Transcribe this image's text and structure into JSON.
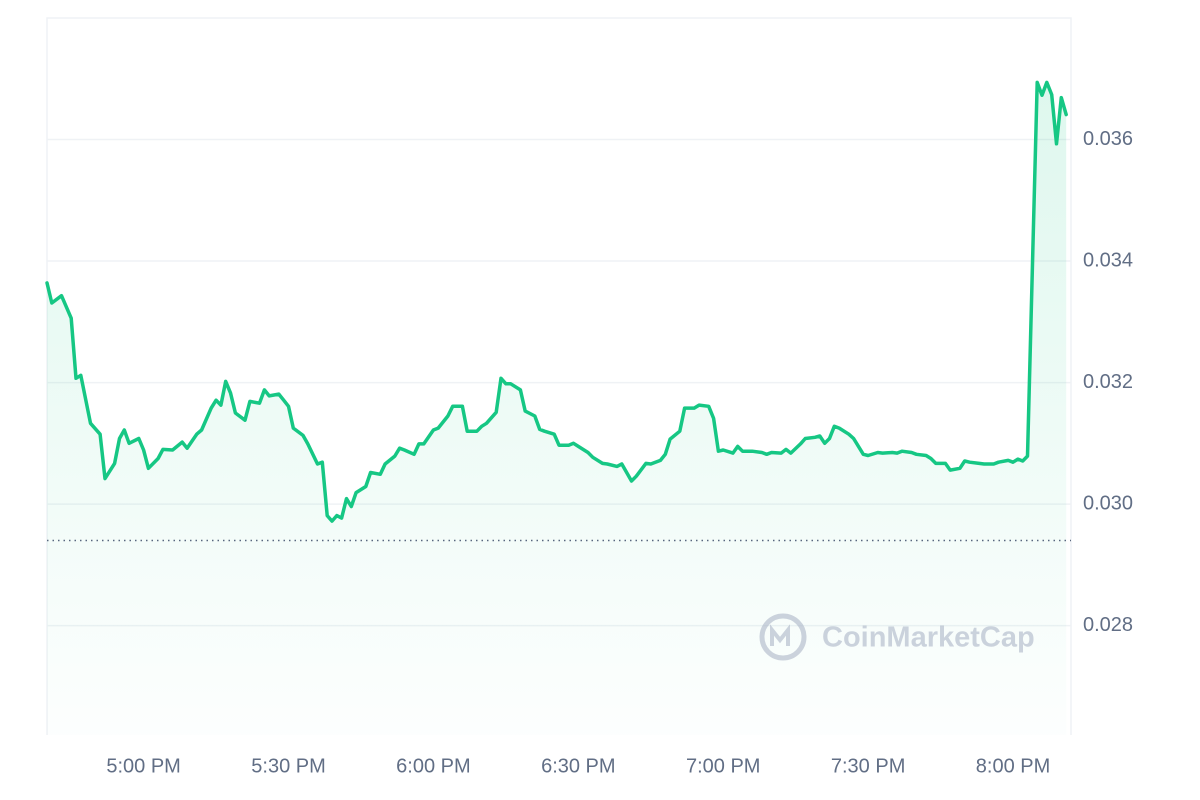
{
  "chart_data": {
    "type": "line",
    "watermark": "CoinMarketCap",
    "color": "#16c784",
    "reference": 0.0294,
    "xlim": [
      "4:40 PM",
      "8:12 PM"
    ],
    "xticks": [
      "5:00 PM",
      "5:30 PM",
      "6:00 PM",
      "6:30 PM",
      "7:00 PM",
      "7:30 PM",
      "8:00 PM"
    ],
    "ylim": [
      0.0262,
      0.038
    ],
    "yticks": [
      0.028,
      {
        "value": 0.03,
        "label": "0.030"
      },
      0.032,
      0.034,
      0.036
    ],
    "grid": true,
    "x": [
      "4:40 PM",
      "4:41 PM",
      "4:43 PM",
      "4:45 PM",
      "4:46 PM",
      "4:47 PM",
      "4:49 PM",
      "4:51 PM",
      "4:52 PM",
      "4:54 PM",
      "4:55 PM",
      "4:56 PM",
      "4:57 PM",
      "4:59 PM",
      "5:00 PM",
      "5:01 PM",
      "5:03 PM",
      "5:04 PM",
      "5:06 PM",
      "5:08 PM",
      "5:09 PM",
      "5:11 PM",
      "5:12 PM",
      "5:14 PM",
      "5:15 PM",
      "5:16 PM",
      "5:17 PM",
      "5:18 PM",
      "5:19 PM",
      "5:21 PM",
      "5:22 PM",
      "5:24 PM",
      "5:25 PM",
      "5:26 PM",
      "5:28 PM",
      "5:29 PM",
      "5:30 PM",
      "5:31 PM",
      "5:33 PM",
      "5:34 PM",
      "5:36 PM",
      "5:37 PM",
      "5:38 PM",
      "5:39 PM",
      "5:40 PM",
      "5:41 PM",
      "5:42 PM",
      "5:43 PM",
      "5:44 PM",
      "5:46 PM",
      "5:47 PM",
      "5:49 PM",
      "5:50 PM",
      "5:52 PM",
      "5:53 PM",
      "5:54 PM",
      "5:56 PM",
      "5:57 PM",
      "5:58 PM",
      "6:00 PM",
      "6:01 PM",
      "6:03 PM",
      "6:04 PM",
      "6:06 PM",
      "6:07 PM",
      "6:09 PM",
      "6:10 PM",
      "6:11 PM",
      "6:13 PM",
      "6:14 PM",
      "6:15 PM",
      "6:16 PM",
      "6:18 PM",
      "6:19 PM",
      "6:21 PM",
      "6:22 PM",
      "6:23 PM",
      "6:25 PM",
      "6:26 PM",
      "6:28 PM",
      "6:29 PM",
      "6:30 PM",
      "6:32 PM",
      "6:33 PM",
      "6:35 PM",
      "6:36 PM",
      "6:38 PM",
      "6:39 PM",
      "6:41 PM",
      "6:42 PM",
      "6:44 PM",
      "6:45 PM",
      "6:47 PM",
      "6:48 PM",
      "6:49 PM",
      "6:51 PM",
      "6:52 PM",
      "6:54 PM",
      "6:55 PM",
      "6:57 PM",
      "6:58 PM",
      "6:59 PM",
      "7:00 PM",
      "7:02 PM",
      "7:03 PM",
      "7:04 PM",
      "7:06 PM",
      "7:08 PM",
      "7:09 PM",
      "7:10 PM",
      "7:12 PM",
      "7:13 PM",
      "7:14 PM",
      "7:16 PM",
      "7:17 PM",
      "7:19 PM",
      "7:20 PM",
      "7:21 PM",
      "7:22 PM",
      "7:23 PM",
      "7:24 PM",
      "7:26 PM",
      "7:27 PM",
      "7:29 PM",
      "7:30 PM",
      "7:32 PM",
      "7:33 PM",
      "7:35 PM",
      "7:36 PM",
      "7:37 PM",
      "7:39 PM",
      "7:40 PM",
      "7:42 PM",
      "7:43 PM",
      "7:44 PM",
      "7:46 PM",
      "7:47 PM",
      "7:49 PM",
      "7:50 PM",
      "7:51 PM",
      "7:53 PM",
      "7:54 PM",
      "7:56 PM",
      "7:57 PM",
      "7:59 PM",
      "8:00 PM",
      "8:01 PM",
      "8:02 PM",
      "8:03 PM",
      "8:05 PM",
      "8:06 PM",
      "8:07 PM",
      "8:08 PM",
      "8:09 PM",
      "8:10 PM",
      "8:11 PM"
    ],
    "values": [
      0.03364,
      0.03331,
      0.03343,
      0.03306,
      0.03207,
      0.03212,
      0.03133,
      0.03115,
      0.03042,
      0.03067,
      0.03108,
      0.03122,
      0.031,
      0.03108,
      0.03089,
      0.03059,
      0.03075,
      0.0309,
      0.03089,
      0.03102,
      0.03092,
      0.03115,
      0.03122,
      0.03158,
      0.03171,
      0.03163,
      0.03202,
      0.03183,
      0.0315,
      0.03138,
      0.03169,
      0.03166,
      0.03188,
      0.03178,
      0.03181,
      0.03171,
      0.03161,
      0.03125,
      0.03113,
      0.03099,
      0.03066,
      0.03069,
      0.02981,
      0.02972,
      0.02981,
      0.02977,
      0.03009,
      0.02996,
      0.03019,
      0.03029,
      0.03052,
      0.03049,
      0.03066,
      0.03079,
      0.03092,
      0.03089,
      0.03082,
      0.03099,
      0.03099,
      0.03122,
      0.03125,
      0.03145,
      0.03161,
      0.03161,
      0.0312,
      0.0312,
      0.03128,
      0.03133,
      0.03151,
      0.03207,
      0.03198,
      0.03198,
      0.03188,
      0.03153,
      0.03145,
      0.03123,
      0.0312,
      0.03115,
      0.03097,
      0.03097,
      0.031,
      0.03095,
      0.03085,
      0.03077,
      0.03067,
      0.03066,
      0.03062,
      0.03066,
      0.03038,
      0.03046,
      0.03067,
      0.03066,
      0.03072,
      0.03082,
      0.03107,
      0.0312,
      0.03158,
      0.03158,
      0.03163,
      0.03161,
      0.03141,
      0.03087,
      0.03089,
      0.03084,
      0.03095,
      0.03087,
      0.03087,
      0.03085,
      0.03082,
      0.03085,
      0.03084,
      0.0309,
      0.03084,
      0.03099,
      0.03108,
      0.0311,
      0.03112,
      0.031,
      0.03108,
      0.03128,
      0.03125,
      0.03115,
      0.03108,
      0.03082,
      0.0308,
      0.03085,
      0.03084,
      0.03085,
      0.03084,
      0.03087,
      0.03085,
      0.03082,
      0.0308,
      0.03075,
      0.03067,
      0.03067,
      0.03056,
      0.03059,
      0.03071,
      0.03069,
      0.03067,
      0.03066,
      0.03066,
      0.03069,
      0.03072,
      0.03069,
      0.03074,
      0.03071,
      0.03079,
      0.03694,
      0.03673,
      0.03694,
      0.03674,
      0.03593,
      0.03669,
      0.03641
    ]
  }
}
